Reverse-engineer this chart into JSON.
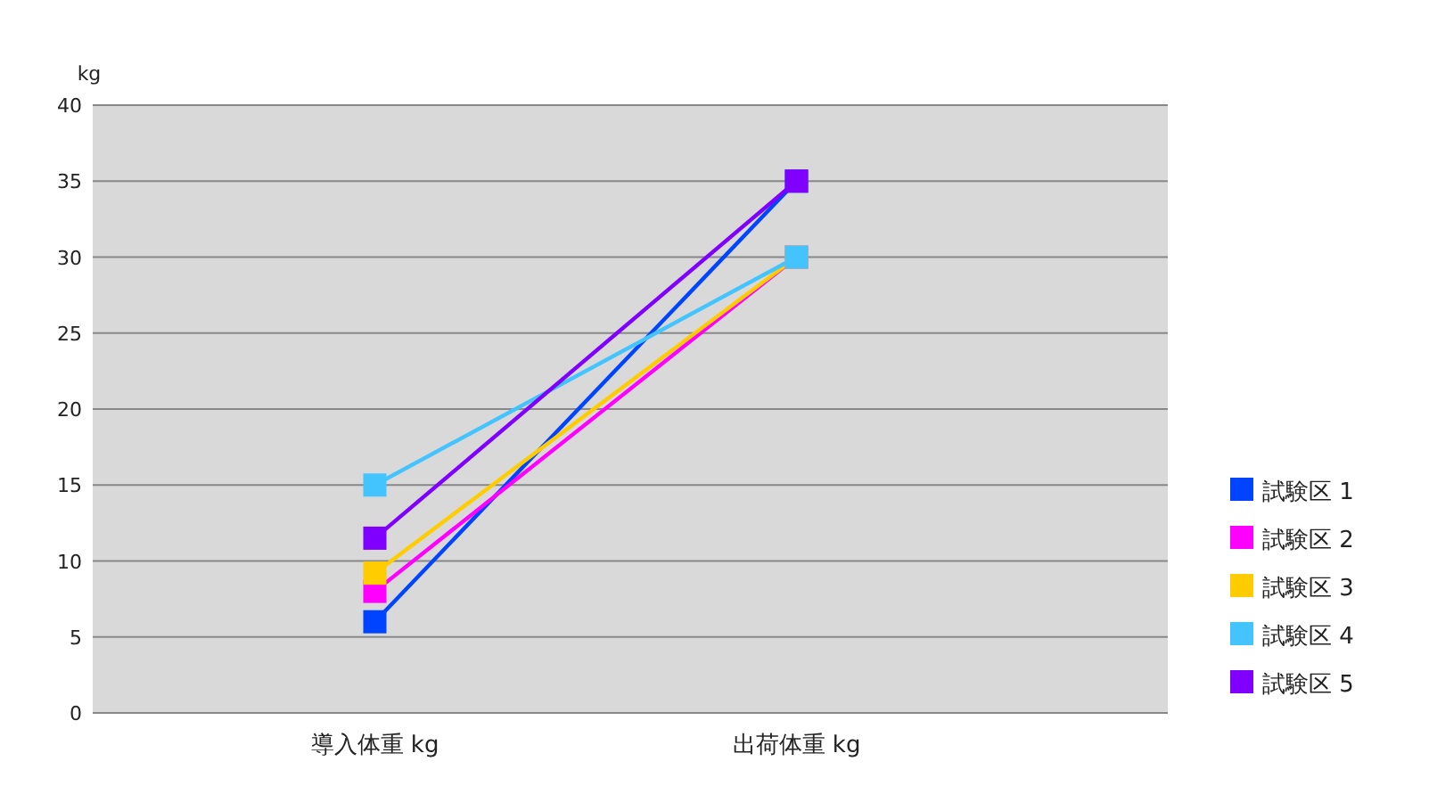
{
  "chart_data": {
    "type": "line",
    "ylabel": "kg",
    "categories": [
      "導入体重 kg",
      "出荷体重 kg"
    ],
    "series": [
      {
        "name": "試験区 1",
        "color": "#0044ff",
        "values": [
          6,
          35
        ]
      },
      {
        "name": "試験区 2",
        "color": "#ff00ff",
        "values": [
          8,
          30
        ]
      },
      {
        "name": "試験区 3",
        "color": "#ffcc00",
        "values": [
          9.2,
          30
        ]
      },
      {
        "name": "試験区 4",
        "color": "#44c4ff",
        "values": [
          15,
          30
        ]
      },
      {
        "name": "試験区 5",
        "color": "#7f00ff",
        "values": [
          11.5,
          35
        ]
      }
    ],
    "ylim": [
      0,
      40
    ],
    "yticks": [
      0,
      5,
      10,
      15,
      20,
      25,
      30,
      35,
      40
    ],
    "grid": "y",
    "legend": "right",
    "marker": "square",
    "line_style": "solid"
  }
}
